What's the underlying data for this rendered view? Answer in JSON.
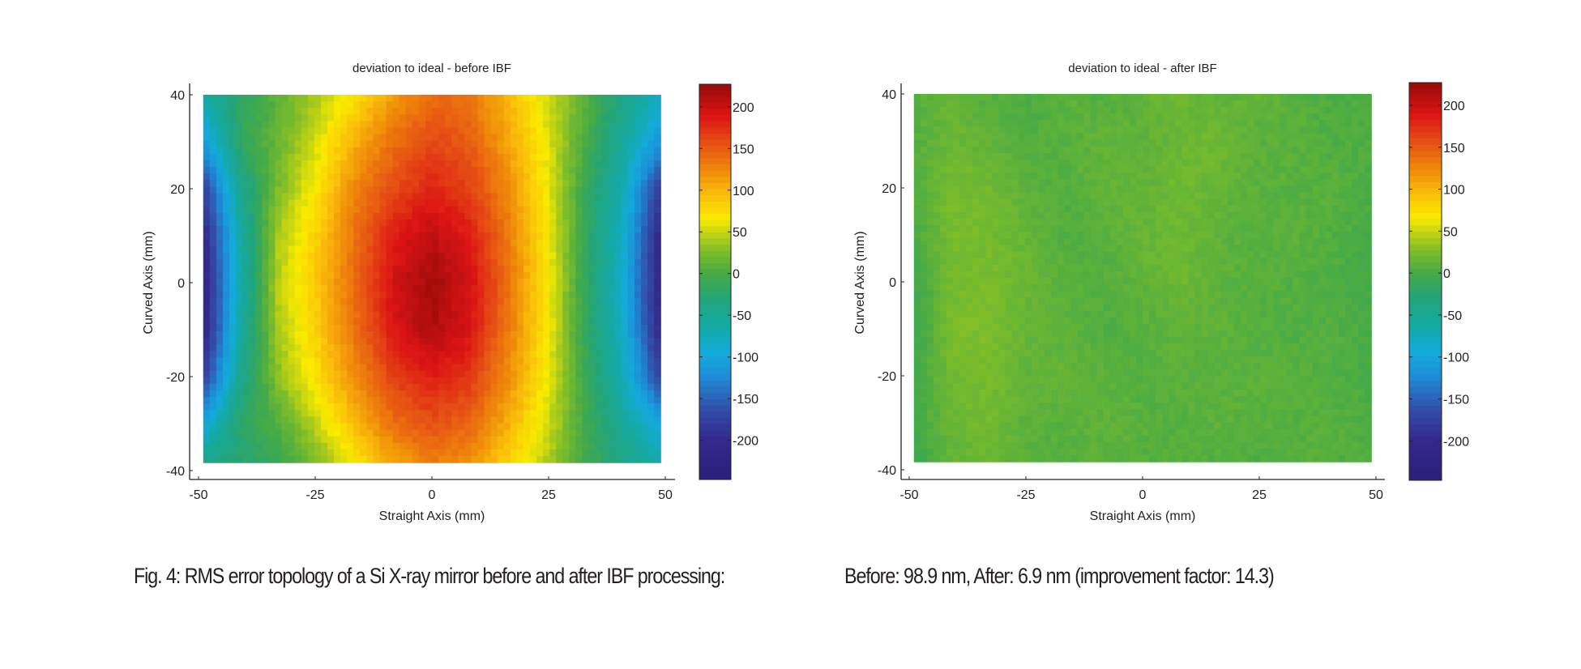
{
  "chart_data": [
    {
      "type": "heatmap",
      "title": "deviation to ideal - before IBF",
      "xlabel": "Straight Axis (mm)",
      "ylabel": "Curved Axis (mm)",
      "xlim": [
        -50,
        50
      ],
      "ylim": [
        -40,
        40
      ],
      "xticks": [
        -50,
        -25,
        0,
        25,
        50
      ],
      "yticks": [
        -40,
        -20,
        0,
        20,
        40
      ],
      "data_extent": {
        "x": [
          -49,
          49
        ],
        "y": [
          -38.3,
          40
        ]
      },
      "colormap": "jet",
      "colorbar": {
        "range": [
          -247,
          227
        ],
        "ticks": [
          -200,
          -150,
          -100,
          -50,
          0,
          50,
          100,
          150,
          200
        ]
      },
      "grid_x": [
        -49,
        -41,
        -33,
        -24.5,
        -16,
        -8,
        0,
        8,
        16,
        24.5,
        33,
        41,
        49
      ],
      "grid_y": [
        40,
        30,
        20,
        10,
        0,
        -10,
        -20,
        -30,
        -38.3
      ],
      "values": [
        [
          -60,
          -20,
          10,
          40,
          75,
          115,
          140,
          135,
          100,
          55,
          10,
          -40,
          -80
        ],
        [
          -110,
          -15,
          15,
          55,
          105,
          140,
          160,
          150,
          110,
          60,
          0,
          -55,
          -120
        ],
        [
          -180,
          -45,
          25,
          70,
          130,
          160,
          180,
          165,
          125,
          65,
          -10,
          -75,
          -180
        ],
        [
          -205,
          -60,
          40,
          85,
          140,
          185,
          205,
          185,
          135,
          70,
          -15,
          -85,
          -205
        ],
        [
          -215,
          -65,
          45,
          90,
          145,
          195,
          220,
          195,
          140,
          72,
          -15,
          -90,
          -210
        ],
        [
          -210,
          -60,
          40,
          85,
          140,
          190,
          215,
          190,
          135,
          70,
          -15,
          -85,
          -205
        ],
        [
          -180,
          -45,
          30,
          75,
          125,
          165,
          185,
          170,
          125,
          65,
          -10,
          -75,
          -175
        ],
        [
          -100,
          -20,
          5,
          50,
          100,
          140,
          155,
          145,
          105,
          55,
          -5,
          -55,
          -100
        ],
        [
          -40,
          -25,
          -10,
          25,
          70,
          110,
          130,
          120,
          85,
          45,
          -5,
          -40,
          -70
        ]
      ]
    },
    {
      "type": "heatmap",
      "title": "deviation to ideal - after IBF",
      "xlabel": "Straight Axis (mm)",
      "ylabel": "Curved Axis (mm)",
      "xlim": [
        -50,
        50
      ],
      "ylim": [
        -40,
        40
      ],
      "xticks": [
        -50,
        -25,
        0,
        25,
        50
      ],
      "yticks": [
        -40,
        -20,
        0,
        20,
        40
      ],
      "data_extent": {
        "x": [
          -49,
          49
        ],
        "y": [
          -38.3,
          40
        ]
      },
      "colormap": "jet",
      "colorbar": {
        "range": [
          -247,
          227
        ],
        "ticks": [
          -200,
          -150,
          -100,
          -50,
          0,
          50,
          100,
          150,
          200
        ]
      },
      "grid_x": [
        -49,
        -41,
        -33,
        -24.5,
        -16,
        -8,
        0,
        8,
        16,
        24.5,
        33,
        41,
        49
      ],
      "grid_y": [
        40,
        30,
        20,
        10,
        0,
        -10,
        -20,
        -30,
        -38.3
      ],
      "values": [
        [
          8,
          14,
          6,
          2,
          10,
          6,
          12,
          18,
          10,
          14,
          6,
          2,
          4
        ],
        [
          6,
          18,
          12,
          4,
          8,
          12,
          10,
          16,
          20,
          8,
          10,
          4,
          2
        ],
        [
          4,
          22,
          20,
          10,
          6,
          14,
          12,
          20,
          14,
          10,
          6,
          8,
          2
        ],
        [
          0,
          24,
          22,
          14,
          4,
          8,
          16,
          18,
          12,
          6,
          10,
          4,
          0
        ],
        [
          -6,
          22,
          24,
          16,
          8,
          6,
          12,
          18,
          10,
          8,
          6,
          2,
          -2
        ],
        [
          -8,
          24,
          26,
          14,
          10,
          4,
          8,
          10,
          12,
          6,
          4,
          6,
          -2
        ],
        [
          -4,
          20,
          22,
          12,
          14,
          8,
          6,
          10,
          8,
          10,
          8,
          4,
          0
        ],
        [
          -2,
          16,
          20,
          10,
          8,
          12,
          8,
          6,
          10,
          8,
          6,
          8,
          2
        ],
        [
          -10,
          14,
          18,
          8,
          6,
          10,
          6,
          8,
          6,
          4,
          8,
          6,
          4
        ]
      ]
    }
  ],
  "caption": {
    "left": "Fig. 4: RMS error topology of a Si X-ray mirror before and after IBF processing:",
    "right": "Before: 98.9 nm, After: 6.9 nm (improvement factor: 14.3)"
  },
  "colors": {
    "axis": "#222222",
    "text": "#231f20"
  }
}
